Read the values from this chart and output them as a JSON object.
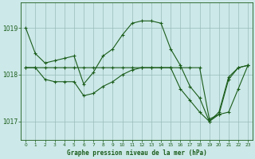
{
  "title": "Graphe pression niveau de la mer (hPa)",
  "bg_color": "#cce8e8",
  "grid_color": "#99bbbb",
  "line_color": "#1a5c1a",
  "marker_color": "#1a5c1a",
  "xlim": [
    -0.5,
    23.5
  ],
  "ylim": [
    1016.6,
    1019.55
  ],
  "yticks": [
    1017,
    1018,
    1019
  ],
  "xticks": [
    0,
    1,
    2,
    3,
    4,
    5,
    6,
    7,
    8,
    9,
    10,
    11,
    12,
    13,
    14,
    15,
    16,
    17,
    18,
    19,
    20,
    21,
    22,
    23
  ],
  "series": [
    {
      "x": [
        0,
        1,
        2,
        3,
        4,
        5,
        6,
        7,
        8,
        9,
        10,
        11,
        12,
        13,
        14,
        15,
        16,
        17,
        18,
        19,
        20,
        21,
        22,
        23
      ],
      "y": [
        1019.0,
        1018.45,
        1018.25,
        1018.3,
        1018.35,
        1018.4,
        1017.8,
        1018.05,
        1018.4,
        1018.55,
        1018.85,
        1019.1,
        1019.15,
        1019.15,
        1019.1,
        1018.55,
        1018.2,
        1017.75,
        1017.5,
        1017.0,
        1017.2,
        1017.95,
        1018.15,
        1018.2
      ]
    },
    {
      "x": [
        0,
        1,
        2,
        3,
        4,
        5,
        6,
        7,
        8,
        9,
        10,
        11,
        12,
        13,
        14,
        15,
        16,
        17,
        18,
        19,
        20,
        21,
        22,
        23
      ],
      "y": [
        1018.15,
        1018.15,
        1018.15,
        1018.15,
        1018.15,
        1018.15,
        1018.15,
        1018.15,
        1018.15,
        1018.15,
        1018.15,
        1018.15,
        1018.15,
        1018.15,
        1018.15,
        1018.15,
        1018.15,
        1018.15,
        1018.15,
        1017.05,
        1017.15,
        1017.9,
        1018.15,
        1018.2
      ]
    },
    {
      "x": [
        0,
        1,
        2,
        3,
        4,
        5,
        6,
        7,
        8,
        9,
        10,
        11,
        12,
        13,
        14,
        15,
        16,
        17,
        18,
        19,
        20,
        21,
        22,
        23
      ],
      "y": [
        1018.15,
        1018.15,
        1017.9,
        1017.85,
        1017.85,
        1017.85,
        1017.55,
        1017.6,
        1017.75,
        1017.85,
        1018.0,
        1018.1,
        1018.15,
        1018.15,
        1018.15,
        1018.15,
        1017.7,
        1017.45,
        1017.2,
        1017.0,
        1017.15,
        1017.2,
        1017.7,
        1018.2
      ]
    }
  ]
}
